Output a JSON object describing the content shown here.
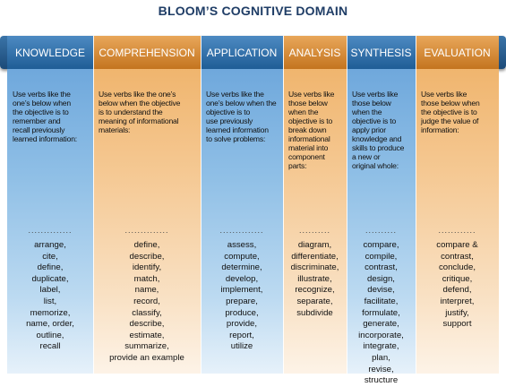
{
  "title": "BLOOM’S COGNITIVE DOMAIN",
  "columns": [
    {
      "header": "KNOWLEDGE",
      "description": "Use verbs like the\none’s below when\nthe objective is to\nremember and\nrecall previously\nlearned information:",
      "dots": "..............",
      "verbs": "arrange,\ncite,\ndefine,\nduplicate,\nlabel,\nlist,\nmemorize,\nname, order,\noutline,\nrecall"
    },
    {
      "header": "COMPREHENSION",
      "description": "Use verbs like the one’s\nbelow when the objective\nis to understand the\nmeaning of informational\nmaterials:",
      "dots": "..............",
      "verbs": "define,\ndescribe,\nidentify,\nmatch,\nname,\nrecord,\nclassify,\ndescribe,\nestimate,\nsummarize,\nprovide an example"
    },
    {
      "header": "APPLICATION",
      "description": "Use verbs like the\none’s below when the\nobjective is to\nuse previously\nlearned information\nto solve problems:",
      "dots": "..............",
      "verbs": "assess,\ncompute,\ndetermine,\ndevelop,\nimplement,\nprepare,\nproduce,\nprovide,\nreport,\nutilize"
    },
    {
      "header": "ANALYSIS",
      "description": "Use verbs like\nthose below\nwhen the\nobjective is to\nbreak down\ninformational\nmaterial into\ncomponent\nparts:",
      "dots": "..........",
      "verbs": "diagram,\ndifferentiate,\ndiscriminate,\nillustrate,\nrecognize,\nseparate,\nsubdivide"
    },
    {
      "header": "SYNTHESIS",
      "description": "Use verbs like\nthose below\nwhen the\nobjective is to\napply prior\nknowledge and\nskills to produce\na new or\noriginal whole:",
      "dots": "..........",
      "verbs": "compare,\ncompile,\ncontrast,\ndesign,\ndevise,\nfacilitate,\nformulate,\ngenerate,\nincorporate,\nintegrate,\nplan,\nrevise,\nstructure"
    },
    {
      "header": "EVALUATION",
      "description": "Use verbs like\nthose below when\nthe objective is to\njudge the value of\ninformation:",
      "dots": "............",
      "verbs": "compare &\ncontrast,\nconclude,\ncritique,\ndefend,\ninterpret,\njustify,\nsupport"
    }
  ]
}
